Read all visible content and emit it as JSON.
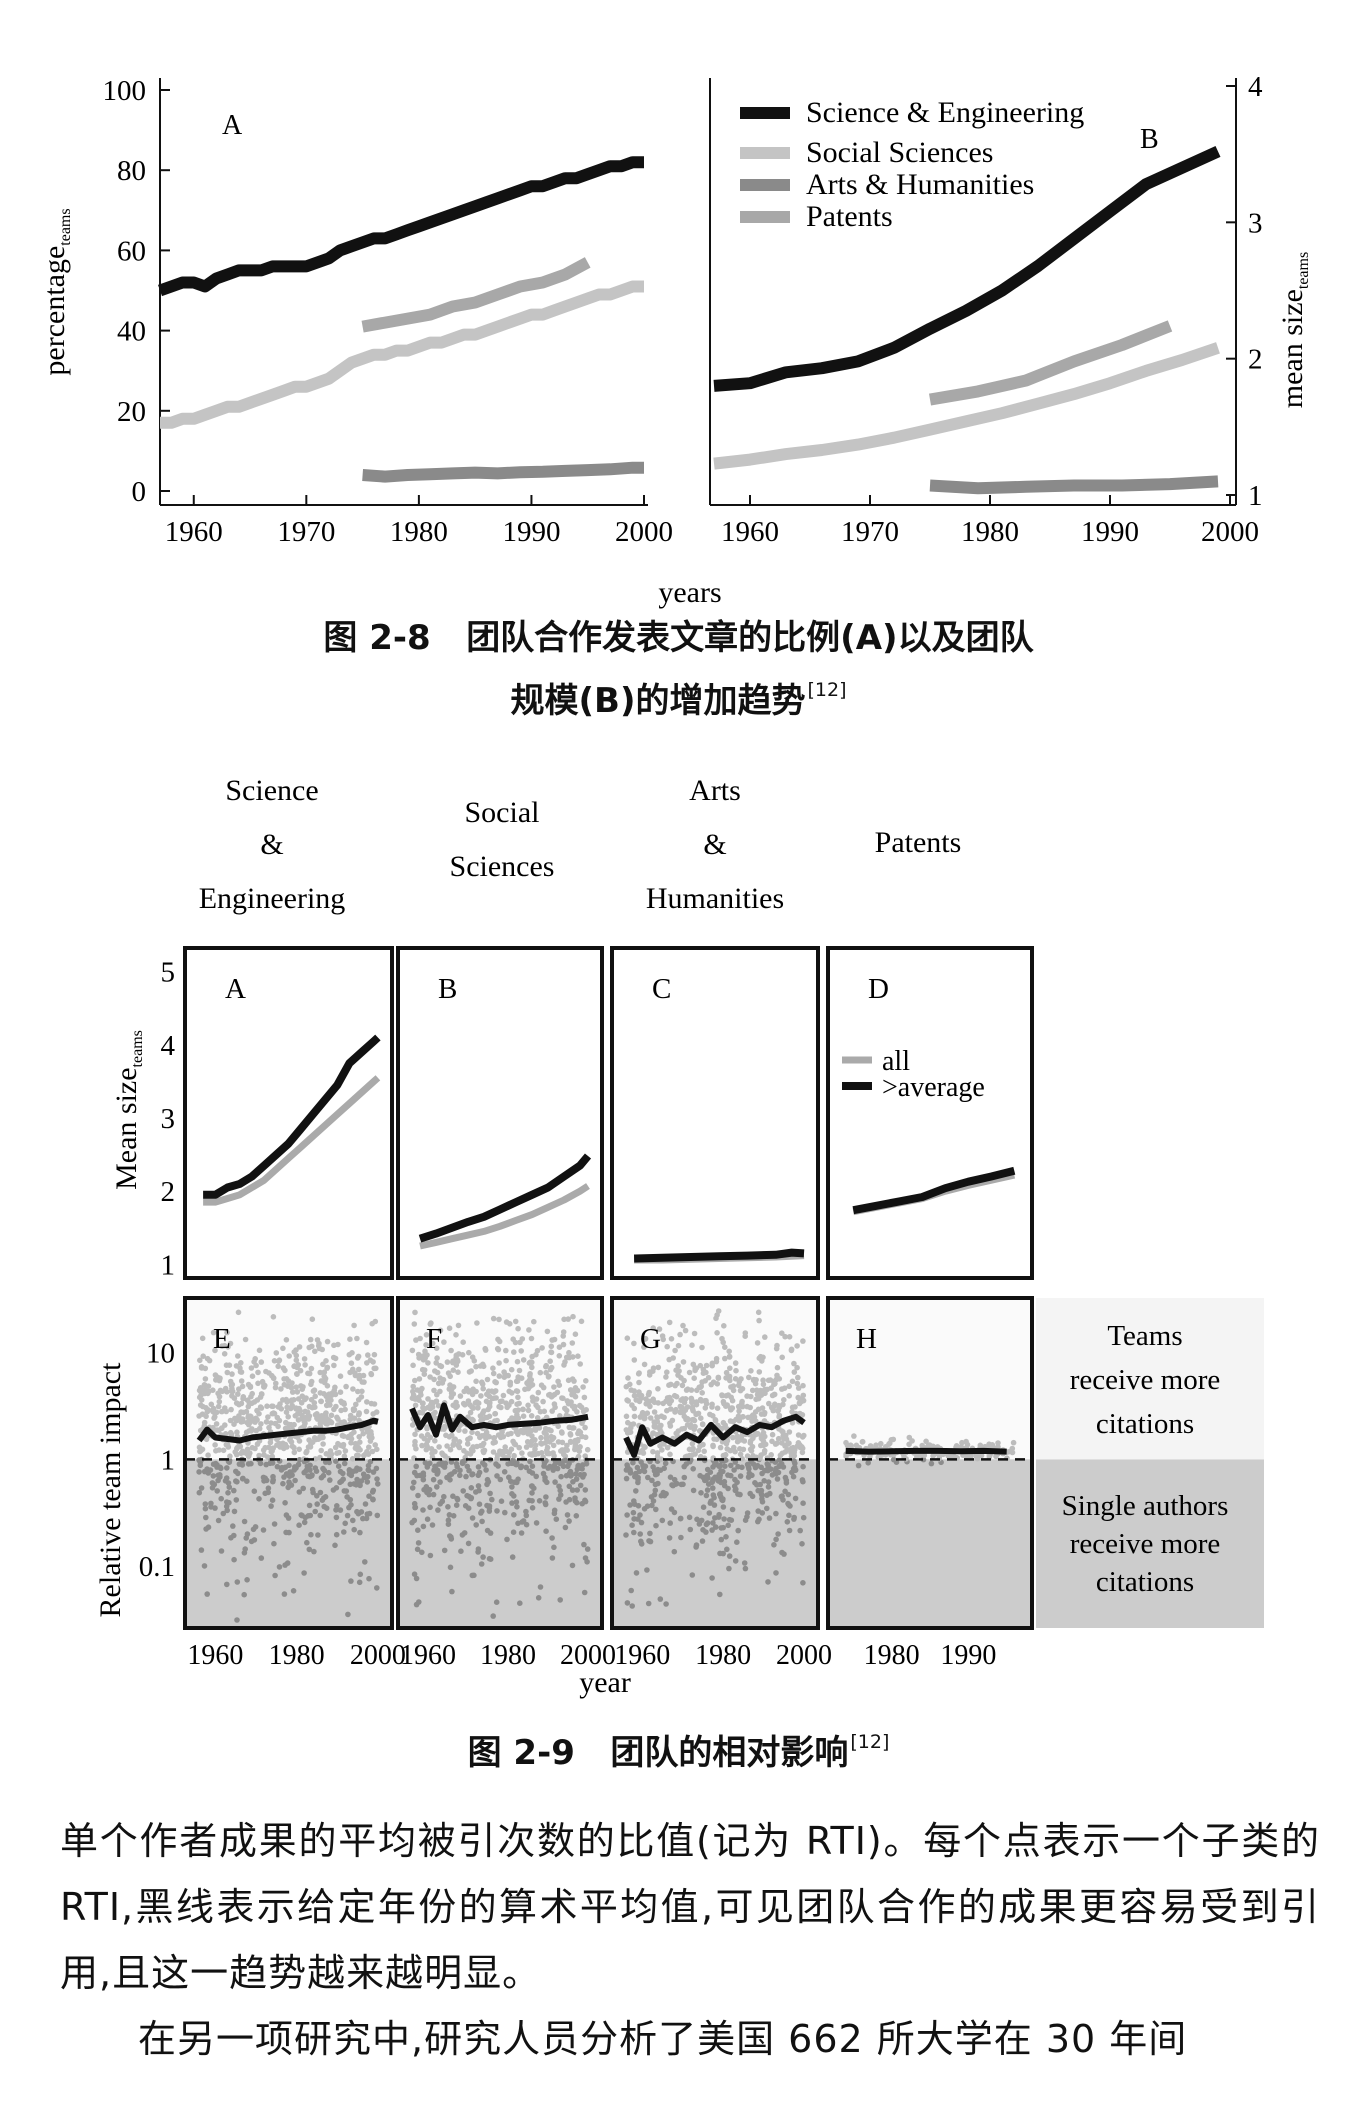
{
  "fig28": {
    "caption_label": "图 2-8",
    "caption_line1": "团队合作发表文章的比例(A)以及团队",
    "caption_line2": "规模(B)的增加趋势",
    "caption_ref": "[12]",
    "xlabel": "years"
  },
  "fig29": {
    "caption_label": "图 2-9",
    "caption_text": "团队的相对影响",
    "caption_ref": "[12]",
    "col_titles": [
      [
        "Science",
        "&",
        "Engineering"
      ],
      [
        "Social",
        "Sciences"
      ],
      [
        "Arts",
        "&",
        "Humanities"
      ],
      [
        "Patents"
      ]
    ],
    "ylabel_top": "Mean size",
    "ylabel_top_sub": "teams",
    "ylabel_bottom": "Relative team impact",
    "xlabel": "year",
    "legend": [
      "all",
      ">average"
    ],
    "teams_note": [
      "Teams",
      "receive more",
      "citations"
    ],
    "single_note": [
      "Single authors",
      "receive more",
      "citations"
    ]
  },
  "body": {
    "para1": "单个作者成果的平均被引次数的比值(记为 RTI)。每个点表示一个子类的 RTI,黑线表示给定年份的算术平均值,可见团队合作的成果更容易受到引用,且这一趋势越来越明显。",
    "para2": "在另一项研究中,研究人员分析了美国 662 所大学在 30 年间"
  },
  "colors": {
    "black": "#111111",
    "light_gray": "#c4c4c4",
    "dark_gray": "#8a8a8a",
    "mid_gray": "#a8a8a8",
    "shade": "#cccccc"
  },
  "chart_data": [
    {
      "id": "fig2-8-A",
      "type": "line",
      "panel_label": "A",
      "xlabel": "years",
      "ylabel": "percentage",
      "ylabel_sub": "teams",
      "xlim": [
        1957,
        2000
      ],
      "ylim": [
        0,
        100
      ],
      "xticks": [
        1960,
        1970,
        1980,
        1990,
        2000
      ],
      "yticks": [
        0,
        20,
        40,
        60,
        80,
        100
      ],
      "series": [
        {
          "name": "Science & Engineering",
          "color": "#111111",
          "x": [
            1957,
            1958,
            1959,
            1960,
            1961,
            1962,
            1963,
            1964,
            1965,
            1966,
            1967,
            1968,
            1969,
            1970,
            1971,
            1972,
            1973,
            1974,
            1975,
            1976,
            1977,
            1978,
            1979,
            1980,
            1981,
            1982,
            1983,
            1984,
            1985,
            1986,
            1987,
            1988,
            1989,
            1990,
            1991,
            1992,
            1993,
            1994,
            1995,
            1996,
            1997,
            1998,
            1999,
            2000
          ],
          "y": [
            50,
            51,
            52,
            52,
            51,
            53,
            54,
            55,
            55,
            55,
            56,
            56,
            56,
            56,
            57,
            58,
            60,
            61,
            62,
            63,
            63,
            64,
            65,
            66,
            67,
            68,
            69,
            70,
            71,
            72,
            73,
            74,
            75,
            76,
            76,
            77,
            78,
            78,
            79,
            80,
            81,
            81,
            82,
            82
          ]
        },
        {
          "name": "Social Sciences",
          "color": "#c4c4c4",
          "x": [
            1957,
            1958,
            1959,
            1960,
            1961,
            1962,
            1963,
            1964,
            1965,
            1966,
            1967,
            1968,
            1969,
            1970,
            1971,
            1972,
            1973,
            1974,
            1975,
            1976,
            1977,
            1978,
            1979,
            1980,
            1981,
            1982,
            1983,
            1984,
            1985,
            1986,
            1987,
            1988,
            1989,
            1990,
            1991,
            1992,
            1993,
            1994,
            1995,
            1996,
            1997,
            1998,
            1999,
            2000
          ],
          "y": [
            17,
            17,
            18,
            18,
            19,
            20,
            21,
            21,
            22,
            23,
            24,
            25,
            26,
            26,
            27,
            28,
            30,
            32,
            33,
            34,
            34,
            35,
            35,
            36,
            37,
            37,
            38,
            39,
            39,
            40,
            41,
            42,
            43,
            44,
            44,
            45,
            46,
            47,
            48,
            49,
            49,
            50,
            51,
            51
          ]
        },
        {
          "name": "Arts & Humanities",
          "color": "#8a8a8a",
          "x": [
            1975,
            1977,
            1979,
            1981,
            1983,
            1985,
            1987,
            1989,
            1991,
            1993,
            1995,
            1997,
            1999,
            2000
          ],
          "y": [
            4,
            3.6,
            4,
            4.2,
            4.4,
            4.6,
            4.4,
            4.7,
            4.8,
            5,
            5.2,
            5.4,
            5.8,
            5.8
          ]
        },
        {
          "name": "Patents",
          "color": "#a8a8a8",
          "x": [
            1975,
            1977,
            1979,
            1981,
            1983,
            1985,
            1987,
            1989,
            1991,
            1993,
            1995
          ],
          "y": [
            41,
            42,
            43,
            44,
            46,
            47,
            49,
            51,
            52,
            54,
            57
          ]
        }
      ]
    },
    {
      "id": "fig2-8-B",
      "type": "line",
      "panel_label": "B",
      "ylabel": "mean size",
      "ylabel_sub": "teams",
      "xlim": [
        1957,
        2000
      ],
      "ylim": [
        1,
        4
      ],
      "xticks": [
        1960,
        1970,
        1980,
        1990,
        2000
      ],
      "yticks": [
        1,
        2,
        3,
        4
      ],
      "legend_position": "top-left",
      "series": [
        {
          "name": "Science & Engineering",
          "color": "#111111",
          "x": [
            1957,
            1960,
            1963,
            1966,
            1969,
            1972,
            1975,
            1978,
            1981,
            1984,
            1987,
            1990,
            1993,
            1996,
            1999
          ],
          "y": [
            1.8,
            1.82,
            1.9,
            1.93,
            1.98,
            2.08,
            2.22,
            2.35,
            2.5,
            2.68,
            2.88,
            3.08,
            3.28,
            3.4,
            3.52
          ]
        },
        {
          "name": "Social Sciences",
          "color": "#c4c4c4",
          "x": [
            1957,
            1960,
            1963,
            1966,
            1969,
            1972,
            1975,
            1978,
            1981,
            1984,
            1987,
            1990,
            1993,
            1996,
            1999
          ],
          "y": [
            1.23,
            1.26,
            1.3,
            1.33,
            1.37,
            1.42,
            1.48,
            1.54,
            1.6,
            1.67,
            1.74,
            1.82,
            1.91,
            1.99,
            2.08
          ]
        },
        {
          "name": "Arts & Humanities",
          "color": "#8a8a8a",
          "x": [
            1975,
            1979,
            1983,
            1987,
            1991,
            1995,
            1999
          ],
          "y": [
            1.07,
            1.05,
            1.06,
            1.07,
            1.07,
            1.08,
            1.1
          ]
        },
        {
          "name": "Patents",
          "color": "#a8a8a8",
          "x": [
            1975,
            1979,
            1983,
            1987,
            1991,
            1995
          ],
          "y": [
            1.7,
            1.76,
            1.84,
            1.98,
            2.1,
            2.24
          ]
        }
      ]
    },
    {
      "id": "fig2-9-mean-size",
      "type": "line",
      "ylabel": "Mean size",
      "ylabel_sub": "teams",
      "ylim": [
        1,
        5
      ],
      "yticks": [
        1,
        2,
        3,
        4,
        5
      ],
      "legend_position": "panel D top",
      "panels": [
        {
          "label": "A",
          "xlim": [
            1955,
            2001
          ],
          "series": [
            {
              "name": "all",
              "color": "#aaaaaa",
              "x": [
                1957,
                1960,
                1963,
                1966,
                1969,
                1972,
                1975,
                1978,
                1981,
                1984,
                1987,
                1990,
                1993,
                1996,
                1999,
                2000
              ],
              "y": [
                1.85,
                1.85,
                1.9,
                1.95,
                2.05,
                2.15,
                2.3,
                2.45,
                2.6,
                2.75,
                2.9,
                3.05,
                3.2,
                3.35,
                3.5,
                3.55
              ]
            },
            {
              "name": ">average",
              "color": "#111111",
              "x": [
                1957,
                1960,
                1963,
                1966,
                1969,
                1972,
                1975,
                1978,
                1981,
                1984,
                1987,
                1990,
                1993,
                1996,
                1999,
                2000
              ],
              "y": [
                1.95,
                1.95,
                2.05,
                2.1,
                2.2,
                2.35,
                2.5,
                2.65,
                2.85,
                3.05,
                3.25,
                3.45,
                3.75,
                3.9,
                4.05,
                4.1
              ]
            }
          ]
        },
        {
          "label": "B",
          "xlim": [
            1955,
            2001
          ],
          "series": [
            {
              "name": "all",
              "color": "#aaaaaa",
              "x": [
                1958,
                1962,
                1966,
                1970,
                1974,
                1978,
                1982,
                1986,
                1990,
                1994,
                1998,
                2000
              ],
              "y": [
                1.25,
                1.3,
                1.35,
                1.4,
                1.45,
                1.52,
                1.6,
                1.68,
                1.78,
                1.88,
                2.0,
                2.07
              ]
            },
            {
              "name": ">average",
              "color": "#111111",
              "x": [
                1958,
                1962,
                1966,
                1970,
                1974,
                1978,
                1982,
                1986,
                1990,
                1994,
                1998,
                2000
              ],
              "y": [
                1.35,
                1.42,
                1.5,
                1.58,
                1.65,
                1.75,
                1.85,
                1.95,
                2.05,
                2.2,
                2.35,
                2.48
              ]
            }
          ]
        },
        {
          "label": "C",
          "xlim": [
            1955,
            2001
          ],
          "series": [
            {
              "name": "all",
              "color": "#aaaaaa",
              "x": [
                1958,
                1965,
                1972,
                1979,
                1986,
                1993,
                2000
              ],
              "y": [
                1.06,
                1.06,
                1.07,
                1.08,
                1.09,
                1.1,
                1.12
              ]
            },
            {
              "name": ">average",
              "color": "#111111",
              "x": [
                1958,
                1965,
                1972,
                1979,
                1986,
                1993,
                1997,
                2000
              ],
              "y": [
                1.08,
                1.09,
                1.1,
                1.11,
                1.12,
                1.13,
                1.16,
                1.15
              ]
            }
          ]
        },
        {
          "label": "D",
          "xlim": [
            1973,
            1997
          ],
          "series": [
            {
              "name": "all",
              "color": "#aaaaaa",
              "x": [
                1975,
                1978,
                1981,
                1984,
                1987,
                1990,
                1993,
                1996
              ],
              "y": [
                1.72,
                1.78,
                1.84,
                1.9,
                2.0,
                2.08,
                2.15,
                2.22
              ]
            },
            {
              "name": ">average",
              "color": "#111111",
              "x": [
                1975,
                1978,
                1981,
                1984,
                1987,
                1990,
                1993,
                1996
              ],
              "y": [
                1.74,
                1.8,
                1.86,
                1.92,
                2.04,
                2.13,
                2.2,
                2.28
              ]
            }
          ]
        }
      ]
    },
    {
      "id": "fig2-9-relative-impact",
      "type": "scatter",
      "ylabel": "Relative team impact",
      "xlabel": "year",
      "yscale": "log",
      "ylim": [
        0.03,
        25
      ],
      "yticks": [
        0.1,
        1,
        10
      ],
      "reference_line": 1,
      "panels": [
        {
          "label": "E",
          "xlim": [
            1955,
            2001
          ],
          "xticks": [
            1960,
            1980,
            2000
          ],
          "mean_line": {
            "x": [
              1956,
              1958,
              1960,
              1963,
              1966,
              1969,
              1972,
              1975,
              1978,
              1981,
              1984,
              1987,
              1990,
              1993,
              1996,
              1999,
              2000
            ],
            "y": [
              1.5,
              1.9,
              1.6,
              1.55,
              1.5,
              1.6,
              1.65,
              1.7,
              1.75,
              1.8,
              1.85,
              1.85,
              1.9,
              2.0,
              2.1,
              2.3,
              2.25
            ]
          }
        },
        {
          "label": "F",
          "xlim": [
            1955,
            2001
          ],
          "xticks": [
            1960,
            1980,
            2000
          ],
          "mean_line": {
            "x": [
              1956,
              1958,
              1960,
              1962,
              1964,
              1966,
              1968,
              1971,
              1974,
              1977,
              1980,
              1984,
              1988,
              1992,
              1996,
              2000
            ],
            "y": [
              3.0,
              2.0,
              2.6,
              1.7,
              3.2,
              1.9,
              2.5,
              2.0,
              2.1,
              2.0,
              2.1,
              2.15,
              2.2,
              2.3,
              2.35,
              2.5
            ]
          }
        },
        {
          "label": "G",
          "xlim": [
            1955,
            2001
          ],
          "xticks": [
            1960,
            1980,
            2000
          ],
          "mean_line": {
            "x": [
              1956,
              1958,
              1960,
              1962,
              1965,
              1968,
              1971,
              1974,
              1977,
              1980,
              1983,
              1986,
              1989,
              1992,
              1995,
              1998,
              2000
            ],
            "y": [
              1.6,
              1.1,
              2.0,
              1.4,
              1.6,
              1.4,
              1.7,
              1.5,
              2.1,
              1.6,
              2.0,
              1.8,
              2.1,
              2.0,
              2.3,
              2.5,
              2.2
            ]
          }
        },
        {
          "label": "H",
          "xlim": [
            1973,
            1997
          ],
          "xticks": [
            1980,
            1990
          ],
          "mean_line": {
            "x": [
              1974,
              1977,
              1980,
              1983,
              1986,
              1989,
              1992,
              1995
            ],
            "y": [
              1.2,
              1.18,
              1.19,
              1.2,
              1.2,
              1.19,
              1.2,
              1.18
            ]
          }
        }
      ]
    }
  ]
}
